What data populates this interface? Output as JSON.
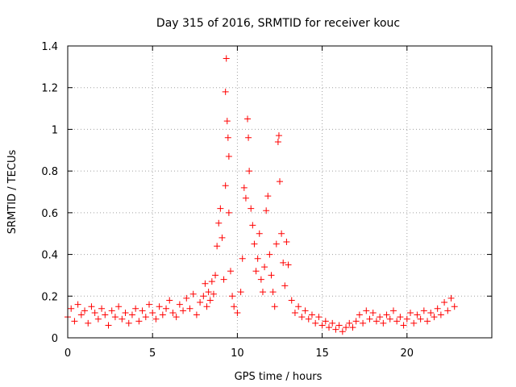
{
  "chart_data": {
    "type": "scatter",
    "title": "Day 315 of 2016, SRMTID for receiver kouc",
    "xlabel": "GPS time / hours",
    "ylabel": "SRMTID / TECUs",
    "xlim": [
      0,
      25
    ],
    "ylim": [
      0,
      1.4
    ],
    "xticks": [
      0,
      5,
      10,
      15,
      20
    ],
    "xtick_labels": [
      "0",
      "5",
      "10",
      "15",
      "20"
    ],
    "yticks": [
      0,
      0.2,
      0.4,
      0.6,
      0.8,
      1.0,
      1.2,
      1.4
    ],
    "ytick_labels": [
      "0",
      "0.2",
      "0.4",
      "0.6",
      "0.8",
      "1",
      "1.2",
      "1.4"
    ],
    "grid": true,
    "marker": "plus",
    "color": "#ff0000",
    "series": [
      {
        "name": "SRMTID",
        "points": [
          [
            0.0,
            0.1
          ],
          [
            0.2,
            0.14
          ],
          [
            0.4,
            0.08
          ],
          [
            0.6,
            0.16
          ],
          [
            0.8,
            0.11
          ],
          [
            1.0,
            0.13
          ],
          [
            1.2,
            0.07
          ],
          [
            1.4,
            0.15
          ],
          [
            1.6,
            0.12
          ],
          [
            1.8,
            0.09
          ],
          [
            2.0,
            0.14
          ],
          [
            2.2,
            0.11
          ],
          [
            2.4,
            0.06
          ],
          [
            2.6,
            0.13
          ],
          [
            2.8,
            0.1
          ],
          [
            3.0,
            0.15
          ],
          [
            3.2,
            0.09
          ],
          [
            3.4,
            0.12
          ],
          [
            3.6,
            0.07
          ],
          [
            3.8,
            0.11
          ],
          [
            4.0,
            0.14
          ],
          [
            4.2,
            0.08
          ],
          [
            4.4,
            0.13
          ],
          [
            4.6,
            0.1
          ],
          [
            4.8,
            0.16
          ],
          [
            5.0,
            0.12
          ],
          [
            5.2,
            0.09
          ],
          [
            5.4,
            0.15
          ],
          [
            5.6,
            0.11
          ],
          [
            5.8,
            0.14
          ],
          [
            6.0,
            0.18
          ],
          [
            6.2,
            0.12
          ],
          [
            6.4,
            0.1
          ],
          [
            6.6,
            0.16
          ],
          [
            6.8,
            0.13
          ],
          [
            7.0,
            0.19
          ],
          [
            7.2,
            0.14
          ],
          [
            7.4,
            0.21
          ],
          [
            7.6,
            0.11
          ],
          [
            7.8,
            0.17
          ],
          [
            8.0,
            0.2
          ],
          [
            8.1,
            0.26
          ],
          [
            8.2,
            0.15
          ],
          [
            8.3,
            0.22
          ],
          [
            8.4,
            0.18
          ],
          [
            8.5,
            0.27
          ],
          [
            8.6,
            0.21
          ],
          [
            8.7,
            0.3
          ],
          [
            8.8,
            0.44
          ],
          [
            8.9,
            0.55
          ],
          [
            9.0,
            0.62
          ],
          [
            9.1,
            0.48
          ],
          [
            9.2,
            0.28
          ],
          [
            9.3,
            0.73
          ],
          [
            9.3,
            1.18
          ],
          [
            9.35,
            1.34
          ],
          [
            9.4,
            1.04
          ],
          [
            9.45,
            0.96
          ],
          [
            9.5,
            0.87
          ],
          [
            9.5,
            0.6
          ],
          [
            9.6,
            0.32
          ],
          [
            9.7,
            0.2
          ],
          [
            9.8,
            0.15
          ],
          [
            10.0,
            0.12
          ],
          [
            10.2,
            0.22
          ],
          [
            10.3,
            0.38
          ],
          [
            10.4,
            0.72
          ],
          [
            10.5,
            0.67
          ],
          [
            10.6,
            1.05
          ],
          [
            10.65,
            0.96
          ],
          [
            10.7,
            0.8
          ],
          [
            10.8,
            0.62
          ],
          [
            10.9,
            0.54
          ],
          [
            11.0,
            0.45
          ],
          [
            11.1,
            0.32
          ],
          [
            11.2,
            0.38
          ],
          [
            11.3,
            0.5
          ],
          [
            11.4,
            0.28
          ],
          [
            11.5,
            0.22
          ],
          [
            11.6,
            0.34
          ],
          [
            11.7,
            0.61
          ],
          [
            11.8,
            0.68
          ],
          [
            11.9,
            0.4
          ],
          [
            12.0,
            0.3
          ],
          [
            12.1,
            0.22
          ],
          [
            12.2,
            0.15
          ],
          [
            12.3,
            0.45
          ],
          [
            12.4,
            0.94
          ],
          [
            12.45,
            0.97
          ],
          [
            12.5,
            0.75
          ],
          [
            12.6,
            0.5
          ],
          [
            12.7,
            0.36
          ],
          [
            12.8,
            0.25
          ],
          [
            12.9,
            0.46
          ],
          [
            13.0,
            0.35
          ],
          [
            13.2,
            0.18
          ],
          [
            13.4,
            0.12
          ],
          [
            13.6,
            0.15
          ],
          [
            13.8,
            0.1
          ],
          [
            14.0,
            0.13
          ],
          [
            14.2,
            0.09
          ],
          [
            14.4,
            0.11
          ],
          [
            14.6,
            0.07
          ],
          [
            14.8,
            0.1
          ],
          [
            15.0,
            0.06
          ],
          [
            15.2,
            0.08
          ],
          [
            15.4,
            0.05
          ],
          [
            15.6,
            0.07
          ],
          [
            15.8,
            0.04
          ],
          [
            16.0,
            0.06
          ],
          [
            16.2,
            0.03
          ],
          [
            16.4,
            0.05
          ],
          [
            16.6,
            0.07
          ],
          [
            16.8,
            0.05
          ],
          [
            17.0,
            0.08
          ],
          [
            17.2,
            0.11
          ],
          [
            17.4,
            0.07
          ],
          [
            17.6,
            0.13
          ],
          [
            17.8,
            0.09
          ],
          [
            18.0,
            0.12
          ],
          [
            18.2,
            0.08
          ],
          [
            18.4,
            0.1
          ],
          [
            18.6,
            0.07
          ],
          [
            18.8,
            0.11
          ],
          [
            19.0,
            0.09
          ],
          [
            19.2,
            0.13
          ],
          [
            19.4,
            0.08
          ],
          [
            19.6,
            0.1
          ],
          [
            19.8,
            0.06
          ],
          [
            20.0,
            0.09
          ],
          [
            20.2,
            0.12
          ],
          [
            20.4,
            0.07
          ],
          [
            20.6,
            0.11
          ],
          [
            20.8,
            0.09
          ],
          [
            21.0,
            0.13
          ],
          [
            21.2,
            0.08
          ],
          [
            21.4,
            0.12
          ],
          [
            21.6,
            0.1
          ],
          [
            21.8,
            0.14
          ],
          [
            22.0,
            0.11
          ],
          [
            22.2,
            0.17
          ],
          [
            22.4,
            0.13
          ],
          [
            22.6,
            0.19
          ],
          [
            22.8,
            0.15
          ]
        ]
      }
    ]
  }
}
